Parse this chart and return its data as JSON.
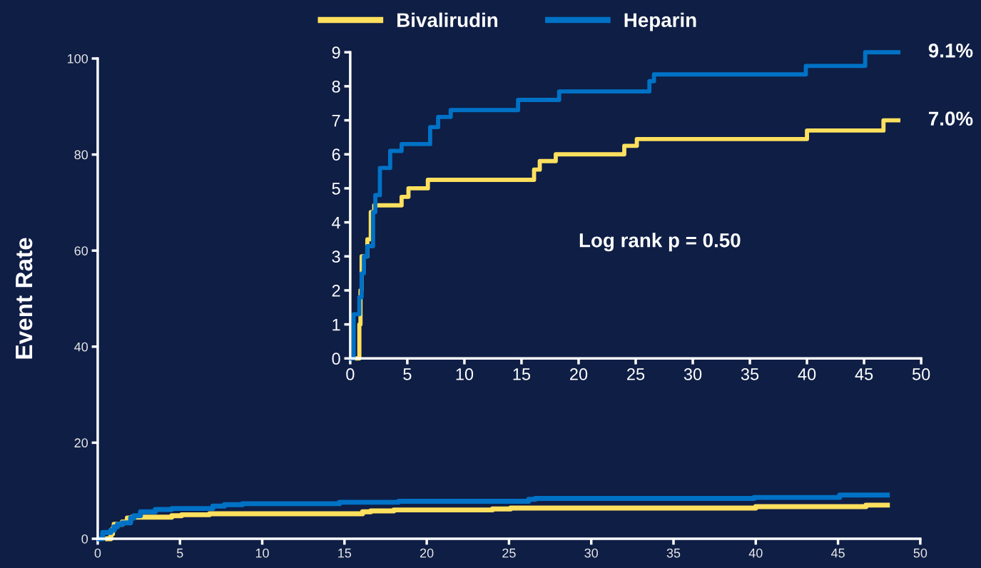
{
  "chart_data": [
    {
      "type": "step",
      "ylabel": "Event Rate",
      "xlim": [
        0,
        50
      ],
      "xticks": [
        0,
        5,
        10,
        15,
        20,
        25,
        30,
        35,
        40,
        45,
        50
      ],
      "ylim": [
        0,
        100
      ],
      "yticks": [
        0,
        20,
        40,
        60,
        80,
        100
      ],
      "grid": false,
      "legend": "top",
      "marker": "none",
      "line_style": "solid",
      "series": [
        {
          "name": "Bivalirudin",
          "color": "#fde05e",
          "x": [
            0.6,
            0.8,
            0.9,
            1.0,
            1.5,
            1.8,
            2.1,
            4.5,
            5.1,
            6.8,
            16.1,
            16.6,
            18.0,
            24.0,
            25.1,
            40.0,
            46.7,
            48.0
          ],
          "values": [
            0,
            1.0,
            2.0,
            3.0,
            3.5,
            4.3,
            4.5,
            4.8,
            5.0,
            5.2,
            5.6,
            5.8,
            6.0,
            6.2,
            6.4,
            6.7,
            7.0,
            7.0
          ]
        },
        {
          "name": "Heparin",
          "color": "#0072c6",
          "x": [
            0.1,
            0.3,
            0.8,
            1.0,
            1.2,
            1.5,
            2.0,
            2.2,
            2.6,
            3.5,
            4.5,
            7.0,
            7.7,
            8.8,
            14.7,
            18.3,
            26.2,
            26.6,
            39.9,
            45.1,
            48.0
          ],
          "values": [
            0,
            1.3,
            1.8,
            2.5,
            3.0,
            3.3,
            4.3,
            4.8,
            5.6,
            6.1,
            6.3,
            6.8,
            7.1,
            7.3,
            7.6,
            7.8,
            8.2,
            8.4,
            8.6,
            9.1,
            9.1
          ]
        }
      ]
    },
    {
      "type": "step",
      "xlim": [
        0,
        50
      ],
      "xticks": [
        0,
        5,
        10,
        15,
        20,
        25,
        30,
        35,
        40,
        45,
        50
      ],
      "ylim": [
        0,
        9
      ],
      "yticks": [
        0,
        1,
        2,
        3,
        4,
        5,
        6,
        7,
        8,
        9
      ],
      "grid": false,
      "legend": false,
      "marker": "none",
      "line_style": "solid",
      "annotations": [
        {
          "text": "9.1%",
          "x": 48.0,
          "y": 9.0
        },
        {
          "text": "7.0%",
          "x": 48.0,
          "y": 7.0
        },
        "Log rank p = 0.50"
      ],
      "series": [
        {
          "color": "#fde05e",
          "x": [
            0.6,
            0.8,
            0.9,
            1.0,
            1.5,
            1.8,
            2.1,
            4.5,
            5.1,
            6.8,
            16.1,
            16.6,
            18.0,
            24.0,
            25.1,
            40.0,
            46.7,
            48.0
          ],
          "values": [
            0,
            1.0,
            2.0,
            3.0,
            3.5,
            4.3,
            4.5,
            4.75,
            5.0,
            5.25,
            5.55,
            5.8,
            6.0,
            6.25,
            6.45,
            6.7,
            7.0,
            7.0
          ]
        },
        {
          "color": "#0072c6",
          "x": [
            0.1,
            0.3,
            0.8,
            1.0,
            1.2,
            1.5,
            2.0,
            2.2,
            2.6,
            3.5,
            4.5,
            7.0,
            7.7,
            8.8,
            14.7,
            18.3,
            26.2,
            26.6,
            39.9,
            45.1,
            48.0
          ],
          "values": [
            0,
            1.3,
            1.8,
            2.5,
            3.0,
            3.3,
            4.3,
            4.8,
            5.6,
            6.1,
            6.3,
            6.8,
            7.1,
            7.3,
            7.6,
            7.85,
            8.15,
            8.35,
            8.6,
            9.0,
            9.0
          ]
        }
      ]
    }
  ]
}
